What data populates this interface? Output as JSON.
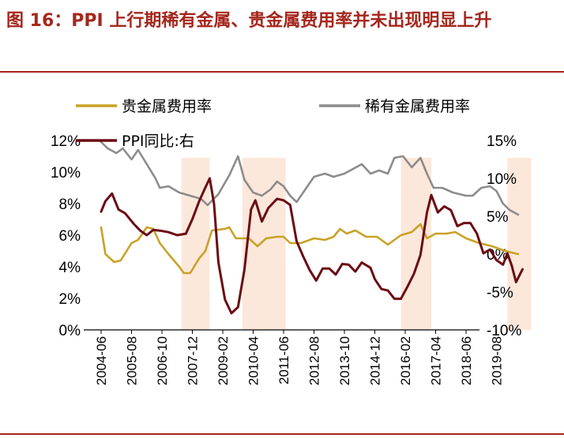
{
  "title": "图 16：PPI 上行期稀有金属、贵金属费用率并未出现明显上升",
  "chart_data": {
    "type": "line",
    "x_start": "2004-06",
    "x_step_months": 1,
    "x_ticks": [
      "2004-06",
      "2005-08",
      "2006-10",
      "2007-12",
      "2009-02",
      "2010-04",
      "2011-06",
      "2012-08",
      "2013-10",
      "2014-12",
      "2016-02",
      "2017-04",
      "2018-06",
      "2019-08"
    ],
    "left_yaxis": {
      "ticks": [
        "0%",
        "2%",
        "4%",
        "6%",
        "8%",
        "10%",
        "12%"
      ],
      "ylim": [
        0,
        12
      ]
    },
    "right_yaxis": {
      "ticks": [
        "-10%",
        "-5%",
        "0%",
        "5%",
        "10%",
        "15%"
      ],
      "ylim": [
        -10,
        15
      ]
    },
    "shaded_periods": [
      {
        "start": "2007-07",
        "end": "2008-08"
      },
      {
        "start": "2009-11",
        "end": "2011-07"
      },
      {
        "start": "2015-12",
        "end": "2017-02"
      },
      {
        "start": "2020-01",
        "end": "2020-12"
      }
    ],
    "series": [
      {
        "name": "贵金属费用率",
        "axis": "left",
        "color": "#c9a227",
        "points": [
          [
            "2004-06",
            6.5
          ],
          [
            "2004-08",
            4.8
          ],
          [
            "2004-12",
            4.3
          ],
          [
            "2005-03",
            4.4
          ],
          [
            "2005-08",
            5.5
          ],
          [
            "2005-11",
            5.7
          ],
          [
            "2006-03",
            6.5
          ],
          [
            "2006-06",
            6.4
          ],
          [
            "2006-09",
            5.5
          ],
          [
            "2007-01",
            4.8
          ],
          [
            "2007-06",
            4.0
          ],
          [
            "2007-08",
            3.6
          ],
          [
            "2007-11",
            3.6
          ],
          [
            "2008-03",
            4.5
          ],
          [
            "2008-06",
            5.0
          ],
          [
            "2008-09",
            6.3
          ],
          [
            "2009-03",
            6.4
          ],
          [
            "2009-05",
            6.5
          ],
          [
            "2009-08",
            5.8
          ],
          [
            "2010-02",
            5.8
          ],
          [
            "2010-06",
            5.3
          ],
          [
            "2010-10",
            5.8
          ],
          [
            "2011-03",
            5.9
          ],
          [
            "2011-06",
            5.9
          ],
          [
            "2011-09",
            5.5
          ],
          [
            "2012-02",
            5.5
          ],
          [
            "2012-08",
            5.8
          ],
          [
            "2013-01",
            5.7
          ],
          [
            "2013-05",
            5.9
          ],
          [
            "2013-08",
            6.4
          ],
          [
            "2013-11",
            6.1
          ],
          [
            "2014-03",
            6.3
          ],
          [
            "2014-08",
            5.9
          ],
          [
            "2015-01",
            5.9
          ],
          [
            "2015-06",
            5.4
          ],
          [
            "2015-12",
            6.0
          ],
          [
            "2016-05",
            6.2
          ],
          [
            "2016-09",
            6.7
          ],
          [
            "2016-12",
            5.8
          ],
          [
            "2017-04",
            6.1
          ],
          [
            "2017-09",
            6.1
          ],
          [
            "2018-01",
            6.2
          ],
          [
            "2018-06",
            5.8
          ],
          [
            "2018-12",
            5.5
          ],
          [
            "2019-06",
            5.3
          ],
          [
            "2019-12",
            5.0
          ],
          [
            "2020-06",
            4.8
          ]
        ]
      },
      {
        "name": "稀有金属费用率",
        "axis": "left",
        "color": "#8c8c8c",
        "points": [
          [
            "2004-06",
            11.9
          ],
          [
            "2004-09",
            11.5
          ],
          [
            "2005-01",
            11.2
          ],
          [
            "2005-04",
            11.5
          ],
          [
            "2005-08",
            10.8
          ],
          [
            "2005-11",
            11.4
          ],
          [
            "2006-03",
            10.5
          ],
          [
            "2006-07",
            9.6
          ],
          [
            "2006-09",
            9.0
          ],
          [
            "2007-01",
            9.1
          ],
          [
            "2007-06",
            8.7
          ],
          [
            "2007-11",
            8.5
          ],
          [
            "2008-04",
            8.3
          ],
          [
            "2008-07",
            7.9
          ],
          [
            "2008-12",
            8.6
          ],
          [
            "2009-05",
            9.8
          ],
          [
            "2009-09",
            11.0
          ],
          [
            "2009-12",
            9.5
          ],
          [
            "2010-04",
            8.7
          ],
          [
            "2010-08",
            8.5
          ],
          [
            "2010-12",
            8.9
          ],
          [
            "2011-03",
            9.4
          ],
          [
            "2011-06",
            9.1
          ],
          [
            "2011-09",
            8.5
          ],
          [
            "2011-12",
            8.1
          ],
          [
            "2012-03",
            8.7
          ],
          [
            "2012-08",
            9.7
          ],
          [
            "2013-01",
            9.9
          ],
          [
            "2013-05",
            9.7
          ],
          [
            "2013-10",
            9.9
          ],
          [
            "2014-02",
            10.2
          ],
          [
            "2014-06",
            10.5
          ],
          [
            "2014-10",
            9.9
          ],
          [
            "2015-02",
            10.1
          ],
          [
            "2015-06",
            9.9
          ],
          [
            "2015-09",
            10.9
          ],
          [
            "2016-01",
            11.0
          ],
          [
            "2016-05",
            10.3
          ],
          [
            "2016-09",
            10.9
          ],
          [
            "2016-12",
            9.9
          ],
          [
            "2017-03",
            9.0
          ],
          [
            "2017-07",
            9.0
          ],
          [
            "2017-12",
            8.7
          ],
          [
            "2018-06",
            8.5
          ],
          [
            "2018-09",
            8.5
          ],
          [
            "2019-01",
            9.0
          ],
          [
            "2019-05",
            9.1
          ],
          [
            "2019-08",
            8.8
          ],
          [
            "2019-11",
            8.0
          ],
          [
            "2020-02",
            7.6
          ],
          [
            "2020-06",
            7.3
          ]
        ]
      },
      {
        "name": "PPI同比:右",
        "axis": "right",
        "color": "#6b0c13",
        "points": [
          [
            "2004-06",
            5.6
          ],
          [
            "2004-08",
            7.0
          ],
          [
            "2004-11",
            8.0
          ],
          [
            "2005-02",
            5.9
          ],
          [
            "2005-05",
            5.4
          ],
          [
            "2005-09",
            4.0
          ],
          [
            "2005-12",
            3.1
          ],
          [
            "2006-03",
            2.5
          ],
          [
            "2006-06",
            3.2
          ],
          [
            "2006-09",
            3.1
          ],
          [
            "2007-01",
            2.9
          ],
          [
            "2007-05",
            2.5
          ],
          [
            "2007-09",
            2.7
          ],
          [
            "2007-12",
            4.6
          ],
          [
            "2008-03",
            6.9
          ],
          [
            "2008-06",
            8.8
          ],
          [
            "2008-08",
            10.0
          ],
          [
            "2008-10",
            6.6
          ],
          [
            "2008-12",
            -1.1
          ],
          [
            "2009-03",
            -6.0
          ],
          [
            "2009-06",
            -7.8
          ],
          [
            "2009-09",
            -7.0
          ],
          [
            "2009-12",
            -2.0
          ],
          [
            "2010-03",
            5.9
          ],
          [
            "2010-05",
            7.1
          ],
          [
            "2010-08",
            4.3
          ],
          [
            "2010-11",
            6.1
          ],
          [
            "2011-03",
            7.3
          ],
          [
            "2011-06",
            7.1
          ],
          [
            "2011-09",
            6.5
          ],
          [
            "2011-12",
            1.7
          ],
          [
            "2012-03",
            -0.3
          ],
          [
            "2012-06",
            -2.1
          ],
          [
            "2012-09",
            -3.5
          ],
          [
            "2012-12",
            -1.9
          ],
          [
            "2013-03",
            -1.9
          ],
          [
            "2013-06",
            -2.7
          ],
          [
            "2013-09",
            -1.3
          ],
          [
            "2013-12",
            -1.4
          ],
          [
            "2014-03",
            -2.3
          ],
          [
            "2014-06",
            -1.1
          ],
          [
            "2014-10",
            -1.8
          ],
          [
            "2014-12",
            -3.3
          ],
          [
            "2015-03",
            -4.6
          ],
          [
            "2015-06",
            -4.8
          ],
          [
            "2015-09",
            -5.9
          ],
          [
            "2015-12",
            -5.9
          ],
          [
            "2016-03",
            -4.3
          ],
          [
            "2016-06",
            -2.6
          ],
          [
            "2016-09",
            -0.1
          ],
          [
            "2016-12",
            5.5
          ],
          [
            "2017-02",
            7.8
          ],
          [
            "2017-05",
            5.5
          ],
          [
            "2017-08",
            6.3
          ],
          [
            "2017-11",
            5.8
          ],
          [
            "2018-02",
            3.7
          ],
          [
            "2018-05",
            4.1
          ],
          [
            "2018-08",
            4.1
          ],
          [
            "2018-11",
            2.7
          ],
          [
            "2019-02",
            0.1
          ],
          [
            "2019-05",
            0.6
          ],
          [
            "2019-08",
            -0.8
          ],
          [
            "2019-11",
            -1.4
          ],
          [
            "2020-01",
            0.1
          ],
          [
            "2020-03",
            -1.5
          ],
          [
            "2020-05",
            -3.7
          ],
          [
            "2020-08",
            -2.0
          ]
        ]
      }
    ]
  }
}
